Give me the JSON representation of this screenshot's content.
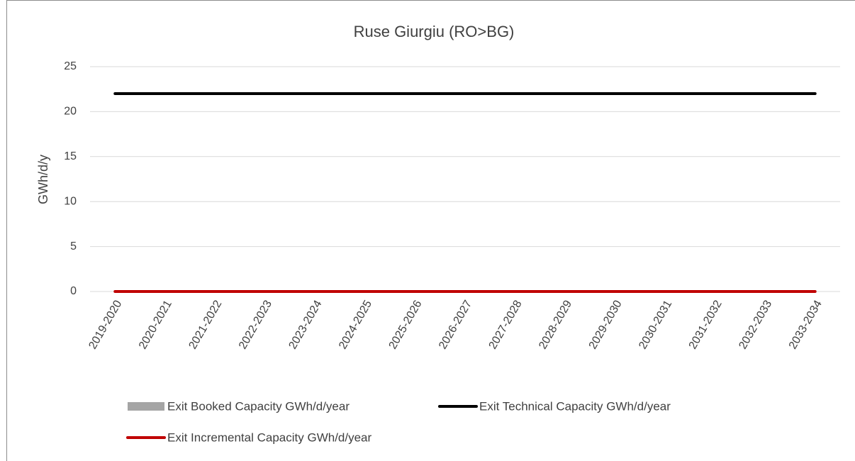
{
  "chart_data": {
    "type": "combo",
    "title": "Ruse Giurgiu (RO>BG)",
    "y_label": "GWh/d/y",
    "categories": [
      "2019-2020",
      "2020-2021",
      "2021-2022",
      "2022-2023",
      "2023-2024",
      "2024-2025",
      "2025-2026",
      "2026-2027",
      "2027-2028",
      "2028-2029",
      "2029-2030",
      "2030-2031",
      "2031-2032",
      "2032-2033",
      "2033-2034"
    ],
    "series": [
      {
        "name": "Exit Booked Capacity GWh/d/year",
        "type": "bar",
        "color": "#a5a5a5",
        "values": [
          0,
          0,
          0,
          0,
          0,
          0,
          0,
          0,
          0,
          0,
          0,
          0,
          0,
          0,
          0
        ]
      },
      {
        "name": "Exit Technical Capacity GWh/d/year",
        "type": "line",
        "color": "#000000",
        "values": [
          22,
          22,
          22,
          22,
          22,
          22,
          22,
          22,
          22,
          22,
          22,
          22,
          22,
          22,
          22
        ]
      },
      {
        "name": "Exit Incremental Capacity GWh/d/year",
        "type": "line",
        "color": "#c00000",
        "values": [
          0,
          0,
          0,
          0,
          0,
          0,
          0,
          0,
          0,
          0,
          0,
          0,
          0,
          0,
          0
        ]
      }
    ],
    "ylim": [
      0,
      25
    ],
    "yticks": [
      0,
      5,
      10,
      15,
      20,
      25
    ],
    "grid": true
  }
}
